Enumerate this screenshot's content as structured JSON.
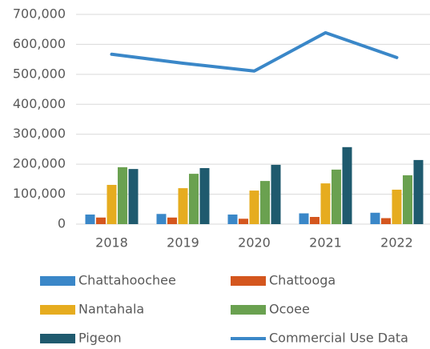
{
  "chart_data": {
    "type": "bar",
    "categories": [
      "2018",
      "2019",
      "2020",
      "2021",
      "2022"
    ],
    "series": [
      {
        "name": "Chattahoochee",
        "color": "#3a87c8",
        "type": "bar",
        "values": [
          32000,
          34000,
          32000,
          36000,
          38000
        ]
      },
      {
        "name": "Chattooga",
        "color": "#d4561e",
        "type": "bar",
        "values": [
          22000,
          22000,
          18000,
          24000,
          20000
        ]
      },
      {
        "name": "Nantahala",
        "color": "#e6ac1f",
        "type": "bar",
        "values": [
          131000,
          120000,
          112000,
          136000,
          115000
        ]
      },
      {
        "name": "Ocoee",
        "color": "#6aa150",
        "type": "bar",
        "values": [
          190000,
          168000,
          144000,
          182000,
          163000
        ]
      },
      {
        "name": "Pigeon",
        "color": "#1f5a6e",
        "type": "bar",
        "values": [
          184000,
          187000,
          198000,
          257000,
          214000
        ]
      },
      {
        "name": "Commercial Use Data",
        "color": "#3a87c8",
        "type": "line",
        "values": [
          567000,
          537000,
          511000,
          639000,
          556000
        ]
      }
    ],
    "ylim": [
      0,
      700000
    ],
    "yticks": [
      0,
      {
        "value": 100000,
        "label": "100,000"
      },
      {
        "value": 200000,
        "label": "200,000"
      },
      {
        "value": 300000,
        "label": "300,000"
      },
      {
        "value": 400000,
        "label": "400,000"
      },
      {
        "value": 500000,
        "label": "500,000"
      },
      {
        "value": 600000,
        "label": "600,000"
      },
      {
        "value": 700000,
        "label": "700,000"
      }
    ],
    "grid": true
  }
}
